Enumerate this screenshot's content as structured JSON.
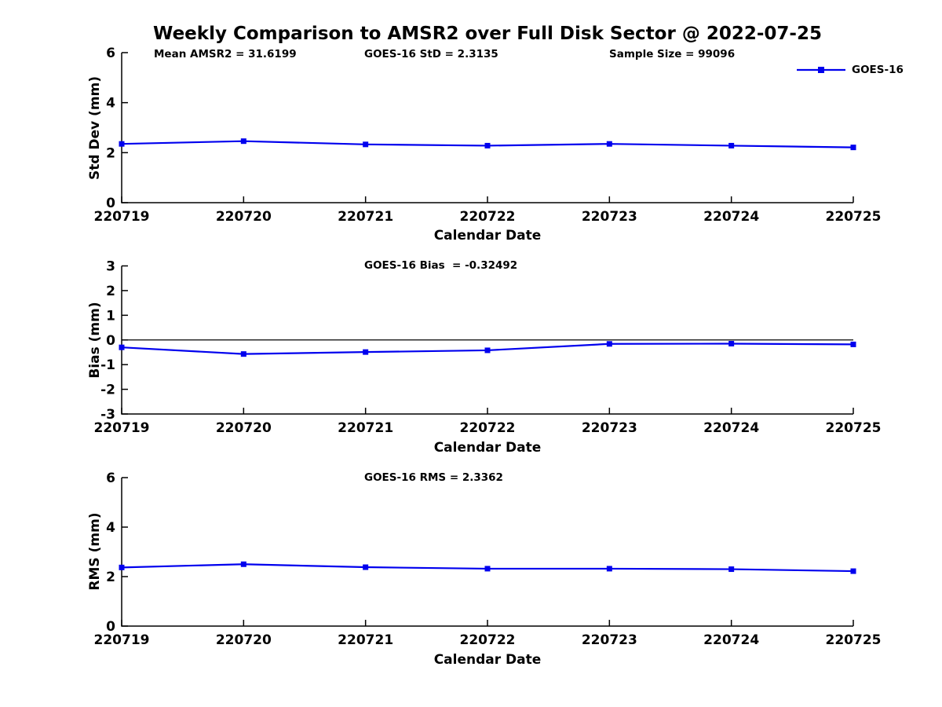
{
  "title": "Weekly Comparison to AMSR2 over Full Disk Sector @ 2022-07-25",
  "colors": {
    "series": "#0000EE",
    "axis": "#000000",
    "background": "#FFFFFF"
  },
  "legend": {
    "label": "GOES-16",
    "position": "top-right",
    "marker": "filled-square"
  },
  "chart_data": [
    {
      "type": "line",
      "title": "Weekly Comparison to AMSR2 over Full Disk Sector @ 2022-07-25",
      "categories": [
        "220719",
        "220720",
        "220721",
        "220722",
        "220723",
        "220724",
        "220725"
      ],
      "series": [
        {
          "name": "GOES-16",
          "values": [
            2.35,
            2.46,
            2.33,
            2.28,
            2.35,
            2.28,
            2.21
          ]
        }
      ],
      "xlabel": "Calendar Date",
      "ylabel": "Std Dev (mm)",
      "ylim": [
        0,
        6
      ],
      "yticks": [
        0,
        2,
        4,
        6
      ],
      "grid": false,
      "annotations": [
        "Mean AMSR2 = 31.6199",
        "GOES-16 StD = 2.3135",
        "Sample Size = 99096"
      ]
    },
    {
      "type": "line",
      "title": "",
      "categories": [
        "220719",
        "220720",
        "220721",
        "220722",
        "220723",
        "220724",
        "220725"
      ],
      "series": [
        {
          "name": "GOES-16",
          "values": [
            -0.3,
            -0.57,
            -0.49,
            -0.42,
            -0.16,
            -0.15,
            -0.18
          ]
        }
      ],
      "xlabel": "Calendar Date",
      "ylabel": "Bias (mm)",
      "ylim": [
        -3,
        3
      ],
      "yticks": [
        -3,
        -2,
        -1,
        0,
        1,
        2,
        3
      ],
      "grid": false,
      "ref_line": 0,
      "annotations": [
        "GOES-16 Bias  = -0.32492"
      ]
    },
    {
      "type": "line",
      "title": "",
      "categories": [
        "220719",
        "220720",
        "220721",
        "220722",
        "220723",
        "220724",
        "220725"
      ],
      "series": [
        {
          "name": "GOES-16",
          "values": [
            2.37,
            2.5,
            2.38,
            2.32,
            2.32,
            2.3,
            2.22
          ]
        }
      ],
      "xlabel": "Calendar Date",
      "ylabel": "RMS (mm)",
      "ylim": [
        0,
        6
      ],
      "yticks": [
        0,
        2,
        4,
        6
      ],
      "grid": false,
      "annotations": [
        "GOES-16 RMS = 2.3362"
      ]
    }
  ]
}
